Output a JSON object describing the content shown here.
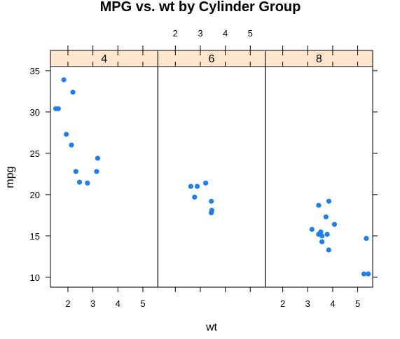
{
  "chart_data": {
    "type": "scatter",
    "title": "MPG vs. wt by Cylinder Group",
    "xlabel": "wt",
    "ylabel": "mpg",
    "xlim": [
      1.3,
      5.6
    ],
    "ylim": [
      8.8,
      35.5
    ],
    "x_ticks": [
      2,
      3,
      4,
      5
    ],
    "y_ticks": [
      10,
      15,
      20,
      25,
      30,
      35
    ],
    "point_color": "#1f7fef",
    "strip_color": "#ffe5cc",
    "grid": false,
    "panels": [
      {
        "label": "4",
        "points": [
          {
            "x": 2.32,
            "y": 22.8
          },
          {
            "x": 3.19,
            "y": 24.4
          },
          {
            "x": 3.15,
            "y": 22.8
          },
          {
            "x": 2.2,
            "y": 32.4
          },
          {
            "x": 1.615,
            "y": 30.4
          },
          {
            "x": 1.835,
            "y": 33.9
          },
          {
            "x": 2.465,
            "y": 21.5
          },
          {
            "x": 1.935,
            "y": 27.3
          },
          {
            "x": 2.14,
            "y": 26.0
          },
          {
            "x": 1.513,
            "y": 30.4
          },
          {
            "x": 2.78,
            "y": 21.4
          }
        ]
      },
      {
        "label": "6",
        "points": [
          {
            "x": 2.62,
            "y": 21.0
          },
          {
            "x": 2.875,
            "y": 21.0
          },
          {
            "x": 3.215,
            "y": 21.4
          },
          {
            "x": 3.46,
            "y": 18.1
          },
          {
            "x": 3.44,
            "y": 19.2
          },
          {
            "x": 3.44,
            "y": 17.8
          },
          {
            "x": 2.77,
            "y": 19.7
          }
        ]
      },
      {
        "label": "8",
        "points": [
          {
            "x": 3.44,
            "y": 18.7
          },
          {
            "x": 3.57,
            "y": 14.3
          },
          {
            "x": 4.07,
            "y": 16.4
          },
          {
            "x": 3.73,
            "y": 17.3
          },
          {
            "x": 3.78,
            "y": 15.2
          },
          {
            "x": 5.25,
            "y": 10.4
          },
          {
            "x": 5.424,
            "y": 10.4
          },
          {
            "x": 5.345,
            "y": 14.7
          },
          {
            "x": 3.52,
            "y": 15.5
          },
          {
            "x": 3.435,
            "y": 15.2
          },
          {
            "x": 3.84,
            "y": 13.3
          },
          {
            "x": 3.845,
            "y": 19.2
          },
          {
            "x": 3.17,
            "y": 15.8
          },
          {
            "x": 3.57,
            "y": 15.0
          }
        ]
      }
    ]
  }
}
